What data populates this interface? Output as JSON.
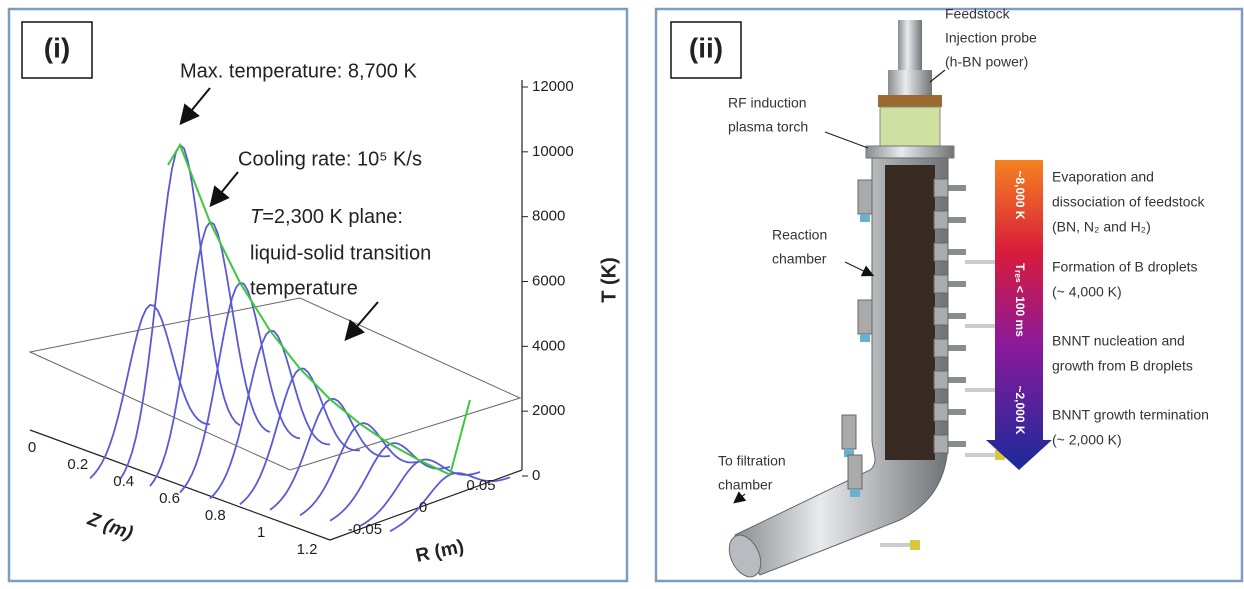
{
  "panel_i": {
    "label": "(i)",
    "annotations": {
      "max_temperature": "Max. temperature: 8,700 K",
      "cooling_rate": "Cooling rate: 10⁵ K/s",
      "plane_symbol": "T",
      "plane_line1": "=2,300 K plane:",
      "plane_line2": "liquid-solid transition",
      "plane_line3": "temperature"
    },
    "t_axis": {
      "label": "T (K)",
      "ticks": [
        "12000",
        "10000",
        "8000",
        "6000",
        "4000",
        "2000",
        "0"
      ]
    },
    "z_axis": {
      "label": "Z (m)",
      "ticks": [
        "0",
        "0.2",
        "0.4",
        "0.6",
        "0.8",
        "1",
        "1.2"
      ]
    },
    "r_axis": {
      "label": "R (m)",
      "ticks": [
        "-0.05",
        "0",
        "0.05"
      ]
    }
  },
  "panel_ii": {
    "label": "(ii)",
    "parts": {
      "feedstock": [
        "Feedstock",
        "Injection probe",
        "(h-BN power)"
      ],
      "torch": [
        "RF induction",
        "plasma torch"
      ],
      "chamber": [
        "Reaction",
        "chamber"
      ],
      "filtration": [
        "To filtration",
        "chamber"
      ]
    },
    "gradient_labels": [
      "~8,000 K",
      "Tᵣₑₛ < 100 ms",
      "~2,000 K"
    ],
    "stages": [
      [
        "Evaporation and",
        "dissociation of feedstock",
        "(BN, N₂ and H₂)"
      ],
      [
        "Formation of B droplets",
        "(~ 4,000 K)"
      ],
      [
        "BNNT nucleation and",
        "growth from B droplets"
      ],
      [
        "BNNT growth termination",
        "(~ 2,000 K)"
      ]
    ]
  }
}
